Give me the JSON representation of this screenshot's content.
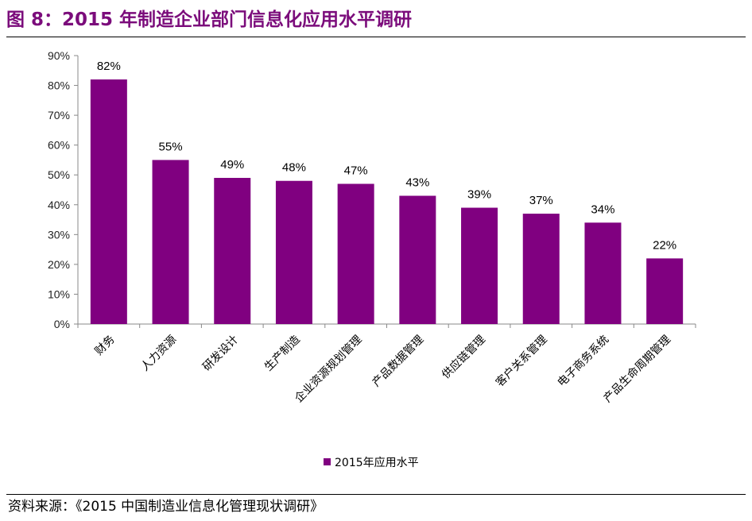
{
  "header": {
    "title": "图 8：2015 年制造企业部门信息化应用水平调研"
  },
  "footer": {
    "source": "资料来源：《2015 中国制造业信息化管理现状调研》"
  },
  "colors": {
    "bar": "#800080",
    "title": "#7b0c7b",
    "axis": "#888888"
  },
  "chart_data": {
    "type": "bar",
    "categories": [
      "财务",
      "人力资源",
      "研发设计",
      "生产制造",
      "企业资源规划管理",
      "产品数据管理",
      "供应链管理",
      "客户关系管理",
      "电子商务系统",
      "产品生命周期管理"
    ],
    "series": [
      {
        "name": "2015年应用水平",
        "values": [
          82,
          55,
          49,
          48,
          47,
          43,
          39,
          37,
          34,
          22
        ]
      }
    ],
    "data_labels": [
      "82%",
      "55%",
      "49%",
      "48%",
      "47%",
      "43%",
      "39%",
      "37%",
      "34%",
      "22%"
    ],
    "y_ticks": [
      0,
      10,
      20,
      30,
      40,
      50,
      60,
      70,
      80,
      90
    ],
    "y_tick_labels": [
      "0%",
      "10%",
      "20%",
      "30%",
      "40%",
      "50%",
      "60%",
      "70%",
      "80%",
      "90%"
    ],
    "ylim": [
      0,
      90
    ],
    "grid": false,
    "legend_position": "bottom"
  }
}
